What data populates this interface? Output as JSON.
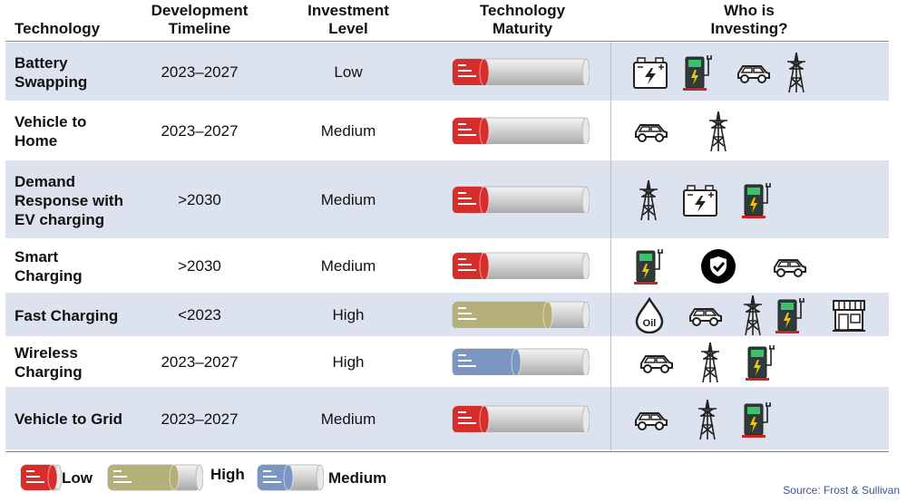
{
  "headers": {
    "technology": "Technology",
    "timeline": "Development\nTimeline",
    "investment": "Investment\nLevel",
    "maturity": "Technology\nMaturity",
    "who": "Who is\nInvesting?"
  },
  "rows": [
    {
      "technology": "Battery\nSwapping",
      "timeline": "2023–2027",
      "investment": "Low",
      "maturity": "low",
      "investors": [
        "battery-icon",
        "charging-station-icon",
        "car-icon",
        "power-tower-icon"
      ]
    },
    {
      "technology": "Vehicle to\nHome",
      "timeline": "2023–2027",
      "investment": "Medium",
      "maturity": "low",
      "investors": [
        "car-icon",
        "power-tower-icon"
      ]
    },
    {
      "technology": "Demand\nResponse with\nEV charging",
      "timeline": ">2030",
      "investment": "Medium",
      "maturity": "low",
      "investors": [
        "power-tower-icon",
        "battery-icon",
        "charging-station-icon"
      ]
    },
    {
      "technology": "Smart\nCharging",
      "timeline": ">2030",
      "investment": "Medium",
      "maturity": "low",
      "investors": [
        "charging-station-icon",
        "shield-check-icon",
        "car-icon"
      ]
    },
    {
      "technology": "Fast Charging",
      "timeline": "<2023",
      "investment": "High",
      "maturity": "high",
      "investors": [
        "oil-drop-icon",
        "car-icon",
        "power-tower-icon",
        "charging-station-icon",
        "store-icon"
      ]
    },
    {
      "technology": "Wireless\nCharging",
      "timeline": "2023–2027",
      "investment": "High",
      "maturity": "medium",
      "investors": [
        "car-icon",
        "power-tower-icon",
        "charging-station-icon"
      ]
    },
    {
      "technology": "Vehicle to Grid",
      "timeline": "2023–2027",
      "investment": "Medium",
      "maturity": "low",
      "investors": [
        "car-icon",
        "power-tower-icon",
        "charging-station-icon"
      ]
    }
  ],
  "legend": {
    "low": "Low",
    "high": "High",
    "medium": "Medium"
  },
  "colors": {
    "low": "#d62d2d",
    "high": "#b5b07a",
    "medium": "#7b96c0",
    "row_shade": "#dde3ee"
  },
  "source": "Source: Frost & Sullivan"
}
